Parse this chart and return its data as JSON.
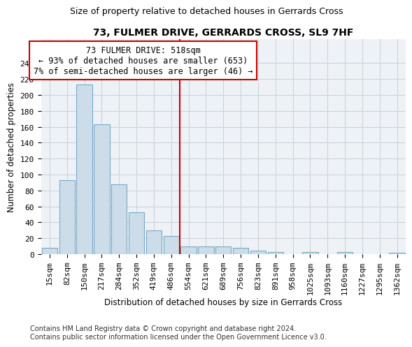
{
  "title": "73, FULMER DRIVE, GERRARDS CROSS, SL9 7HF",
  "subtitle": "Size of property relative to detached houses in Gerrards Cross",
  "xlabel": "Distribution of detached houses by size in Gerrards Cross",
  "ylabel": "Number of detached properties",
  "categories": [
    "15sqm",
    "82sqm",
    "150sqm",
    "217sqm",
    "284sqm",
    "352sqm",
    "419sqm",
    "486sqm",
    "554sqm",
    "621sqm",
    "689sqm",
    "756sqm",
    "823sqm",
    "891sqm",
    "958sqm",
    "1025sqm",
    "1093sqm",
    "1160sqm",
    "1227sqm",
    "1295sqm",
    "1362sqm"
  ],
  "values": [
    8,
    93,
    213,
    163,
    88,
    53,
    30,
    23,
    10,
    10,
    10,
    8,
    4,
    3,
    0,
    3,
    0,
    3,
    0,
    0,
    2
  ],
  "bar_color": "#ccdce8",
  "bar_edge_color": "#7aaac8",
  "property_line_x": 7.5,
  "property_line_color": "#cc0000",
  "annotation_text": "73 FULMER DRIVE: 518sqm\n← 93% of detached houses are smaller (653)\n7% of semi-detached houses are larger (46) →",
  "annotation_box_color": "#ffffff",
  "annotation_box_edge_color": "#cc0000",
  "ylim": [
    0,
    270
  ],
  "yticks": [
    0,
    20,
    40,
    60,
    80,
    100,
    120,
    140,
    160,
    180,
    200,
    220,
    240
  ],
  "footer_text": "Contains HM Land Registry data © Crown copyright and database right 2024.\nContains public sector information licensed under the Open Government Licence v3.0.",
  "title_fontsize": 10,
  "subtitle_fontsize": 9,
  "xlabel_fontsize": 8.5,
  "ylabel_fontsize": 8.5,
  "tick_fontsize": 8,
  "annotation_fontsize": 8.5,
  "footer_fontsize": 7
}
